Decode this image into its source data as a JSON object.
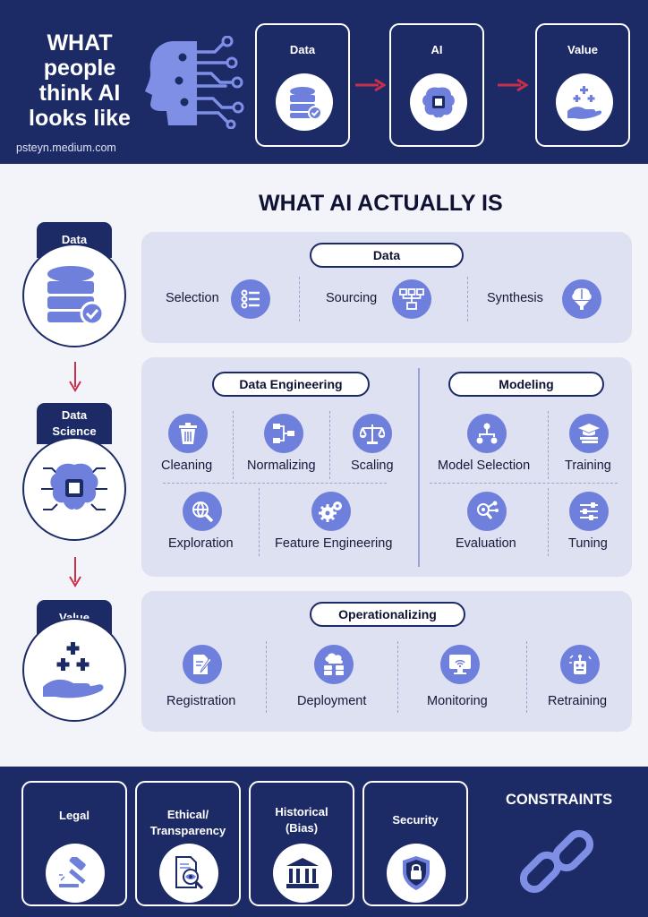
{
  "top": {
    "title_lines": [
      "WHAT",
      "people",
      "think AI",
      "looks like"
    ],
    "source": "psteyn.medium.com",
    "cards": [
      {
        "label": "Data",
        "icon": "database-icon"
      },
      {
        "label": "AI",
        "icon": "brain-chip-icon"
      },
      {
        "label": "Value",
        "icon": "hand-plus-icon"
      }
    ]
  },
  "main_title": "WHAT AI ACTUALLY IS",
  "steps": [
    {
      "label": "Data",
      "icon": "database-icon"
    },
    {
      "label": "Data Science",
      "icon": "brain-chip-icon"
    },
    {
      "label": "Value",
      "icon": "hand-plus-icon"
    }
  ],
  "data_panel": {
    "title": "Data",
    "items": [
      {
        "label": "Selection",
        "icon": "checklist-icon"
      },
      {
        "label": "Sourcing",
        "icon": "network-grid-icon"
      },
      {
        "label": "Synthesis",
        "icon": "brain-funnel-icon"
      }
    ]
  },
  "data_engineering": {
    "title": "Data Engineering",
    "items": [
      {
        "label": "Cleaning",
        "icon": "trash-icon"
      },
      {
        "label": "Normalizing",
        "icon": "flowchart-icon"
      },
      {
        "label": "Scaling",
        "icon": "balance-scale-icon"
      },
      {
        "label": "Exploration",
        "icon": "magnifier-globe-icon"
      },
      {
        "label": "Feature Engineering",
        "icon": "gears-icon"
      }
    ]
  },
  "modeling": {
    "title": "Modeling",
    "items": [
      {
        "label": "Model Selection",
        "icon": "hierarchy-icon"
      },
      {
        "label": "Training",
        "icon": "graduation-books-icon"
      },
      {
        "label": "Evaluation",
        "icon": "magnifier-nodes-icon"
      },
      {
        "label": "Tuning",
        "icon": "sliders-icon"
      }
    ]
  },
  "operationalizing": {
    "title": "Operationalizing",
    "items": [
      {
        "label": "Registration",
        "icon": "document-pen-icon"
      },
      {
        "label": "Deployment",
        "icon": "cloud-servers-icon"
      },
      {
        "label": "Monitoring",
        "icon": "monitor-signal-icon"
      },
      {
        "label": "Retraining",
        "icon": "robot-refresh-icon"
      }
    ]
  },
  "constraints": {
    "title": "CONSTRAINTS",
    "icon": "chain-link-icon",
    "items": [
      {
        "label_lines": [
          "Legal"
        ],
        "icon": "gavel-icon"
      },
      {
        "label_lines": [
          "Ethical/",
          "Transparency"
        ],
        "icon": "document-eye-icon"
      },
      {
        "label_lines": [
          "Historical",
          "(Bias)"
        ],
        "icon": "museum-icon"
      },
      {
        "label_lines": [
          "Security"
        ],
        "icon": "shield-lock-icon"
      }
    ]
  },
  "colors": {
    "navy": "#1c2a66",
    "accent": "#6f7fdc",
    "arrow": "#c8304a",
    "panel": "#dde1f1",
    "background": "#f3f4fa"
  }
}
